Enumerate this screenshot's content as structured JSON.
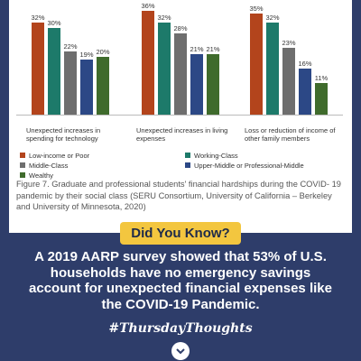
{
  "chart_data": {
    "type": "bar",
    "categories": [
      "Unexpected increases in spending for technology",
      "Unexpected increases in living expenses",
      "Loss or reduction of income of other family members"
    ],
    "series": [
      {
        "name": "Low-income or Poor",
        "color": "#b3441c",
        "values": [
          32,
          36,
          35
        ],
        "value_labels": [
          "32%",
          "36%",
          "35%"
        ]
      },
      {
        "name": "Working-Class",
        "color": "#1d7a6a",
        "values": [
          30,
          32,
          32
        ],
        "value_labels": [
          "30%",
          "32%",
          "32%"
        ]
      },
      {
        "name": "Middle-Class",
        "color": "#6e6e6e",
        "values": [
          22,
          28,
          23
        ],
        "value_labels": [
          "22%",
          "28%",
          "23%"
        ]
      },
      {
        "name": "Upper-Middle or Professional-Middle",
        "color": "#2c4886",
        "values": [
          19,
          21,
          16
        ],
        "value_labels": [
          "19%",
          "21%",
          "16%"
        ]
      },
      {
        "name": "Wealthy",
        "color": "#3f6b2c",
        "values": [
          20,
          21,
          11
        ],
        "value_labels": [
          "20%",
          "21%",
          "11%"
        ]
      }
    ],
    "caption": "Figure 7. Graduate and professional students' financial hardships during the COVID- 19 pandemic by their social class (SERU Consortium, University of California – Berkeley and University of Minnesota, 2020)"
  },
  "banner": "Did You Know?",
  "body": "A 2019 AARP survey showed that 53% of U.S. households have no emergency savings account for unexpected financial expenses like the COVID-19 Pandemic.",
  "hashtag": "#ThursdayThoughts"
}
